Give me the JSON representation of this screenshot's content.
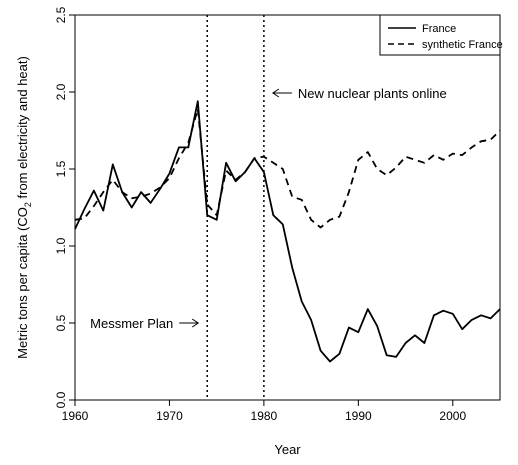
{
  "chart_data": {
    "type": "line",
    "title": "",
    "xlabel": "Year",
    "ylabel": "Metric tons per capita (CO",
    "ylabel_sub": "2",
    "ylabel_tail": " from electricity and heat)",
    "xlim": [
      1960,
      2005
    ],
    "ylim": [
      0,
      2.5
    ],
    "x_ticks": [
      1960,
      1970,
      1980,
      1990,
      2000
    ],
    "y_ticks": [
      "0.0",
      "0.5",
      "1.0",
      "1.5",
      "2.0",
      "2.5"
    ],
    "grid": false,
    "legend_position": "top-right",
    "x": [
      1960,
      1961,
      1962,
      1963,
      1964,
      1965,
      1966,
      1967,
      1968,
      1969,
      1970,
      1971,
      1972,
      1973,
      1974,
      1975,
      1976,
      1977,
      1978,
      1979,
      1980,
      1981,
      1982,
      1983,
      1984,
      1985,
      1986,
      1987,
      1988,
      1989,
      1990,
      1991,
      1992,
      1993,
      1994,
      1995,
      1996,
      1997,
      1998,
      1999,
      2000,
      2001,
      2002,
      2003,
      2004,
      2005
    ],
    "series": [
      {
        "name": "France",
        "line_style": "solid",
        "values": [
          1.11,
          1.24,
          1.36,
          1.23,
          1.53,
          1.35,
          1.25,
          1.35,
          1.28,
          1.37,
          1.47,
          1.64,
          1.64,
          1.94,
          1.2,
          1.17,
          1.54,
          1.42,
          1.48,
          1.57,
          1.48,
          1.2,
          1.14,
          0.86,
          0.64,
          0.52,
          0.32,
          0.25,
          0.3,
          0.47,
          0.44,
          0.59,
          0.48,
          0.29,
          0.28,
          0.37,
          0.42,
          0.37,
          0.55,
          0.58,
          0.56,
          0.46,
          0.52,
          0.55,
          0.53,
          0.59
        ]
      },
      {
        "name": "synthetic France",
        "line_style": "dashed",
        "values": [
          1.17,
          1.18,
          1.26,
          1.35,
          1.43,
          1.35,
          1.31,
          1.32,
          1.34,
          1.38,
          1.44,
          1.57,
          1.67,
          1.89,
          1.27,
          1.2,
          1.49,
          1.43,
          1.48,
          1.57,
          1.58,
          1.54,
          1.5,
          1.32,
          1.3,
          1.17,
          1.12,
          1.17,
          1.19,
          1.35,
          1.56,
          1.61,
          1.5,
          1.46,
          1.51,
          1.58,
          1.56,
          1.54,
          1.59,
          1.56,
          1.6,
          1.59,
          1.64,
          1.68,
          1.69,
          1.75
        ]
      }
    ],
    "vlines": [
      1974,
      1980
    ],
    "annotations": [
      {
        "text": "New nuclear plants online",
        "arrow_to": 1980
      },
      {
        "text": "Messmer Plan",
        "arrow_to": 1974
      }
    ]
  }
}
